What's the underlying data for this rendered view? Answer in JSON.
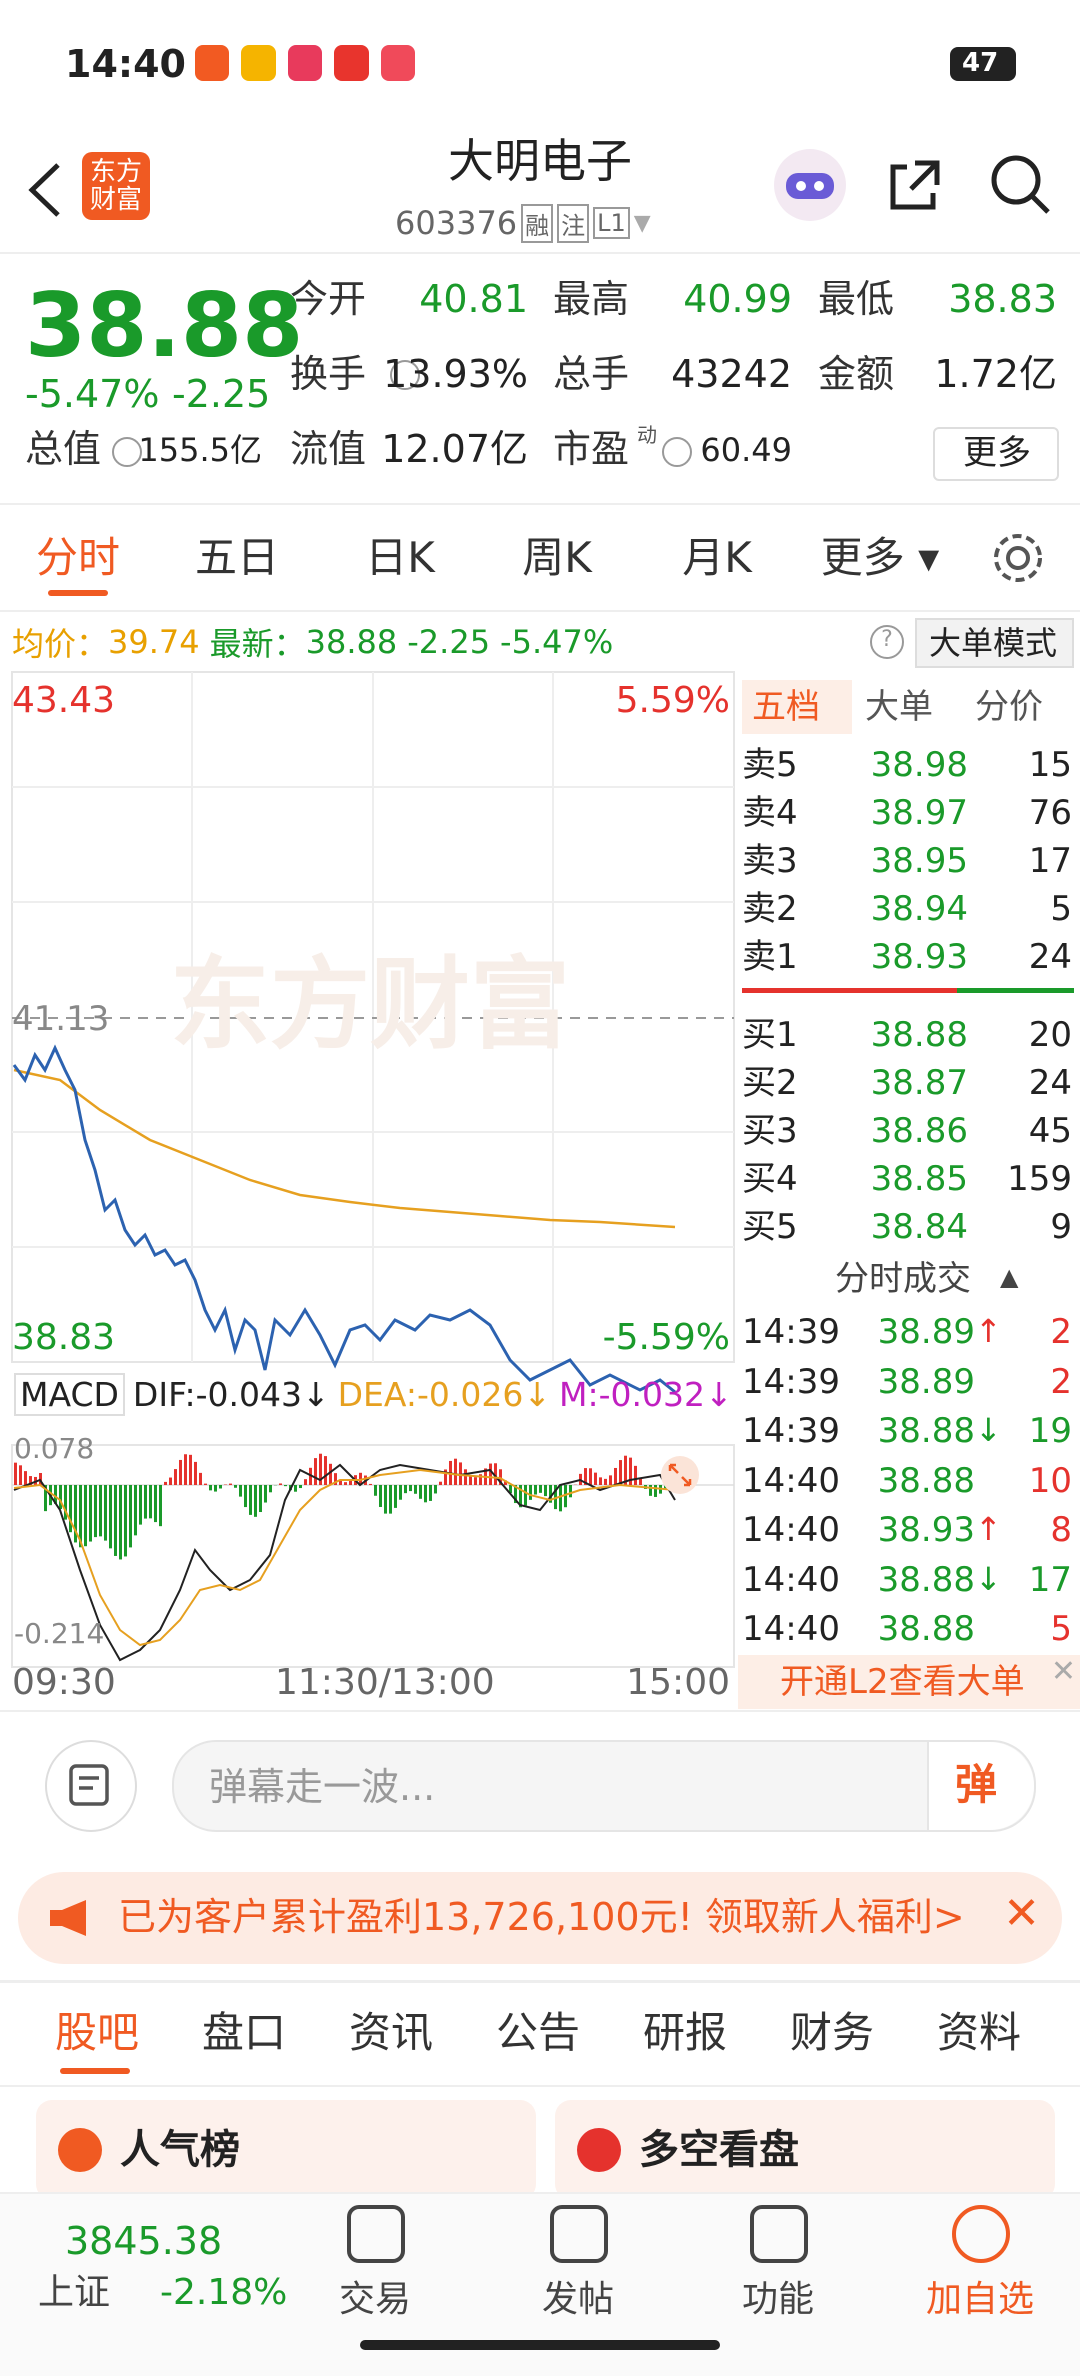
{
  "status": {
    "time": "14:40",
    "battery": "47"
  },
  "header": {
    "logo": "东方财富",
    "title": "大明电子",
    "code": "603376",
    "tags": [
      "融",
      "注",
      "L1"
    ]
  },
  "quote": {
    "price": "38.88",
    "change_pct": "-5.47%",
    "change": "-2.25",
    "rows": [
      [
        {
          "label": "今开",
          "value": "40.81"
        },
        {
          "label": "最高",
          "value": "40.99"
        },
        {
          "label": "最低",
          "value": "38.83"
        }
      ],
      [
        {
          "label": "换手",
          "value": "13.93%"
        },
        {
          "label": "总手",
          "value": "43242"
        },
        {
          "label": "金额",
          "value": "1.72亿"
        }
      ],
      [
        {
          "label": "总值",
          "value": "155.5亿"
        },
        {
          "label": "流值",
          "value": "12.07亿"
        },
        {
          "label": "市盈",
          "value": "60.49"
        }
      ]
    ],
    "pe_mark": "动",
    "more": "更多"
  },
  "tabs": [
    "分时",
    "五日",
    "日K",
    "周K",
    "月K",
    "更多"
  ],
  "info": {
    "avg_label": "均价：",
    "avg": "39.74",
    "latest_label": "最新：",
    "latest": "38.88",
    "change": "-2.25",
    "change_pct": "-5.47%",
    "mode": "大单模式"
  },
  "chart": {
    "top": "43.43",
    "top_pct": "5.59%",
    "mid": "41.13",
    "bottom": "38.83",
    "bottom_pct": "-5.59%",
    "watermark": "东方财富",
    "macd": {
      "name": "MACD",
      "dif": "DIF:-0.043↓",
      "dea": "DEA:-0.026↓",
      "m": "M:-0.032↓",
      "top": "0.078",
      "bottom": "-0.214"
    },
    "times": [
      "09:30",
      "11:30/13:00",
      "15:00"
    ]
  },
  "book": {
    "tabs": [
      "五档",
      "大单",
      "分价"
    ],
    "asks": [
      [
        "卖5",
        "38.98",
        "15"
      ],
      [
        "卖4",
        "38.97",
        "76"
      ],
      [
        "卖3",
        "38.95",
        "17"
      ],
      [
        "卖2",
        "38.94",
        "5"
      ],
      [
        "卖1",
        "38.93",
        "24"
      ]
    ],
    "bids": [
      [
        "买1",
        "38.88",
        "20"
      ],
      [
        "买2",
        "38.87",
        "24"
      ],
      [
        "买3",
        "38.86",
        "45"
      ],
      [
        "买4",
        "38.85",
        "159"
      ],
      [
        "买5",
        "38.84",
        "9"
      ]
    ],
    "trades_title": "分时成交",
    "trades": [
      {
        "time": "14:39",
        "price": "38.89",
        "arrow": "↑",
        "vol": "2"
      },
      {
        "time": "14:39",
        "price": "38.89",
        "vol": "2"
      },
      {
        "time": "14:39",
        "price": "38.88",
        "arrow": "↓",
        "vol": "19"
      },
      {
        "time": "14:40",
        "price": "38.88",
        "vol": "10"
      },
      {
        "time": "14:40",
        "price": "38.93",
        "arrow": "↑",
        "vol": "8"
      },
      {
        "time": "14:40",
        "price": "38.88",
        "arrow": "↓",
        "vol": "17"
      },
      {
        "time": "14:40",
        "price": "38.88",
        "vol": "5"
      }
    ],
    "l2": "开通L2查看大单"
  },
  "danmu": {
    "placeholder": "弹幕走一波...",
    "button": "弹"
  },
  "banner": "已为客户累计盈利13,726,100元! 领取新人福利>",
  "section_tabs": [
    "股吧",
    "盘口",
    "资讯",
    "公告",
    "研报",
    "财务",
    "资料"
  ],
  "cards": [
    "人气榜",
    "多空看盘"
  ],
  "nav": {
    "index_value": "3845.38",
    "index_name": "上证",
    "index_change": "-2.18%",
    "items": [
      "交易",
      "发帖",
      "功能",
      "加自选"
    ]
  }
}
